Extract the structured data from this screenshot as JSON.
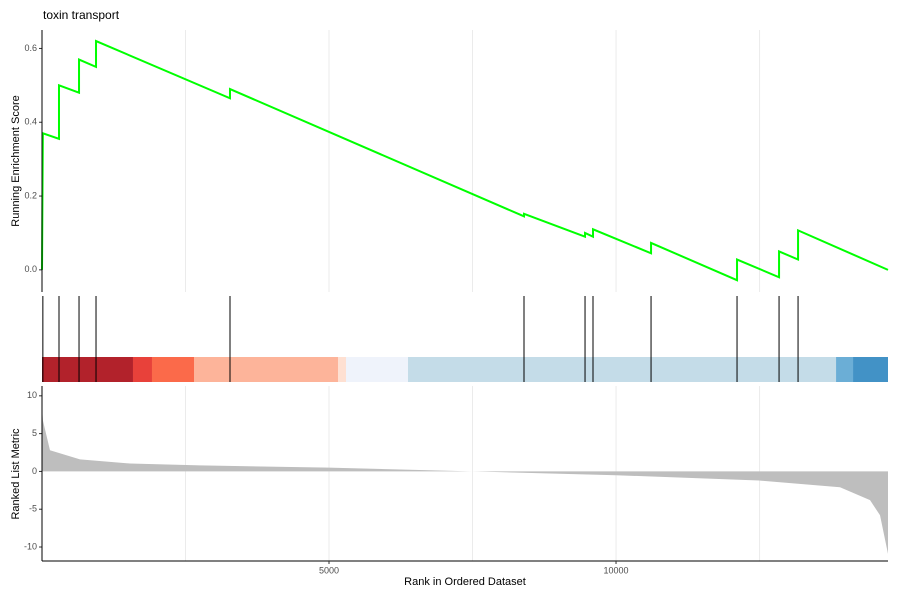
{
  "chart_data": [
    {
      "type": "line",
      "title": "toxin transport",
      "y_label": "Running Enrichment Score",
      "x": [
        0,
        15,
        296,
        296,
        645,
        645,
        941,
        941,
        3275,
        3275,
        8397,
        8397,
        9460,
        9460,
        9599,
        9599,
        10610,
        10610,
        12108,
        12108,
        12840,
        12840,
        13171,
        13171,
        14738
      ],
      "values": [
        0,
        0.37,
        0.355,
        0.5,
        0.48,
        0.57,
        0.55,
        0.62,
        0.465,
        0.49,
        0.145,
        0.152,
        0.09,
        0.1,
        0.09,
        0.11,
        0.045,
        0.073,
        -0.028,
        0.028,
        -0.02,
        0.05,
        0.028,
        0.107,
        0
      ],
      "color": "#00ff00",
      "xlim": [
        0,
        14738
      ],
      "x_grid": [
        2500,
        5000,
        7500,
        10000,
        12500
      ],
      "ylim": [
        -0.06,
        0.65
      ],
      "yticks": [
        {
          "value": 0,
          "label": "0.0"
        },
        {
          "value": 0.2,
          "label": "0.2"
        },
        {
          "value": 0.4,
          "label": "0.4"
        },
        {
          "value": 0.6,
          "label": "0.6"
        }
      ]
    },
    {
      "type": "rug",
      "x": [
        15,
        296,
        645,
        941,
        3275,
        8397,
        9460,
        9599,
        10610,
        12108,
        12840,
        13171
      ],
      "color": "#000000",
      "xlim": [
        0,
        14738
      ],
      "color_bands": [
        {
          "start": 0,
          "end": 1585,
          "color": "#b2222b"
        },
        {
          "start": 1585,
          "end": 1916,
          "color": "#e8413a"
        },
        {
          "start": 1916,
          "end": 2648,
          "color": "#fb6a4a"
        },
        {
          "start": 2648,
          "end": 5157,
          "color": "#fdb49a"
        },
        {
          "start": 5157,
          "end": 5296,
          "color": "#fee0d2"
        },
        {
          "start": 5296,
          "end": 6376,
          "color": "#eff3fb"
        },
        {
          "start": 6376,
          "end": 13833,
          "color": "#c4dce8"
        },
        {
          "start": 13833,
          "end": 14129,
          "color": "#6baed6"
        },
        {
          "start": 14129,
          "end": 14738,
          "color": "#4292c6"
        }
      ]
    },
    {
      "type": "area",
      "y_label": "Ranked List Metric",
      "x_label": "Rank in Ordered Dataset",
      "x": [
        0,
        17,
        139,
        662,
        1533,
        2753,
        5000,
        7491,
        10000,
        12491,
        13902,
        14425,
        14599,
        14738
      ],
      "values": [
        8.5,
        6.7,
        2.8,
        1.6,
        1.05,
        0.8,
        0.5,
        0,
        -0.5,
        -1.2,
        -2.1,
        -3.8,
        -5.8,
        -10.9
      ],
      "color": "#bebebe",
      "xlim": [
        0,
        14738
      ],
      "xticks": [
        5000,
        10000
      ],
      "x_grid": [
        2500,
        5000,
        7500,
        10000,
        12500
      ],
      "ylim": [
        -11.85,
        11.3
      ],
      "yticks": [
        10,
        5,
        0,
        -5,
        -10
      ]
    }
  ]
}
